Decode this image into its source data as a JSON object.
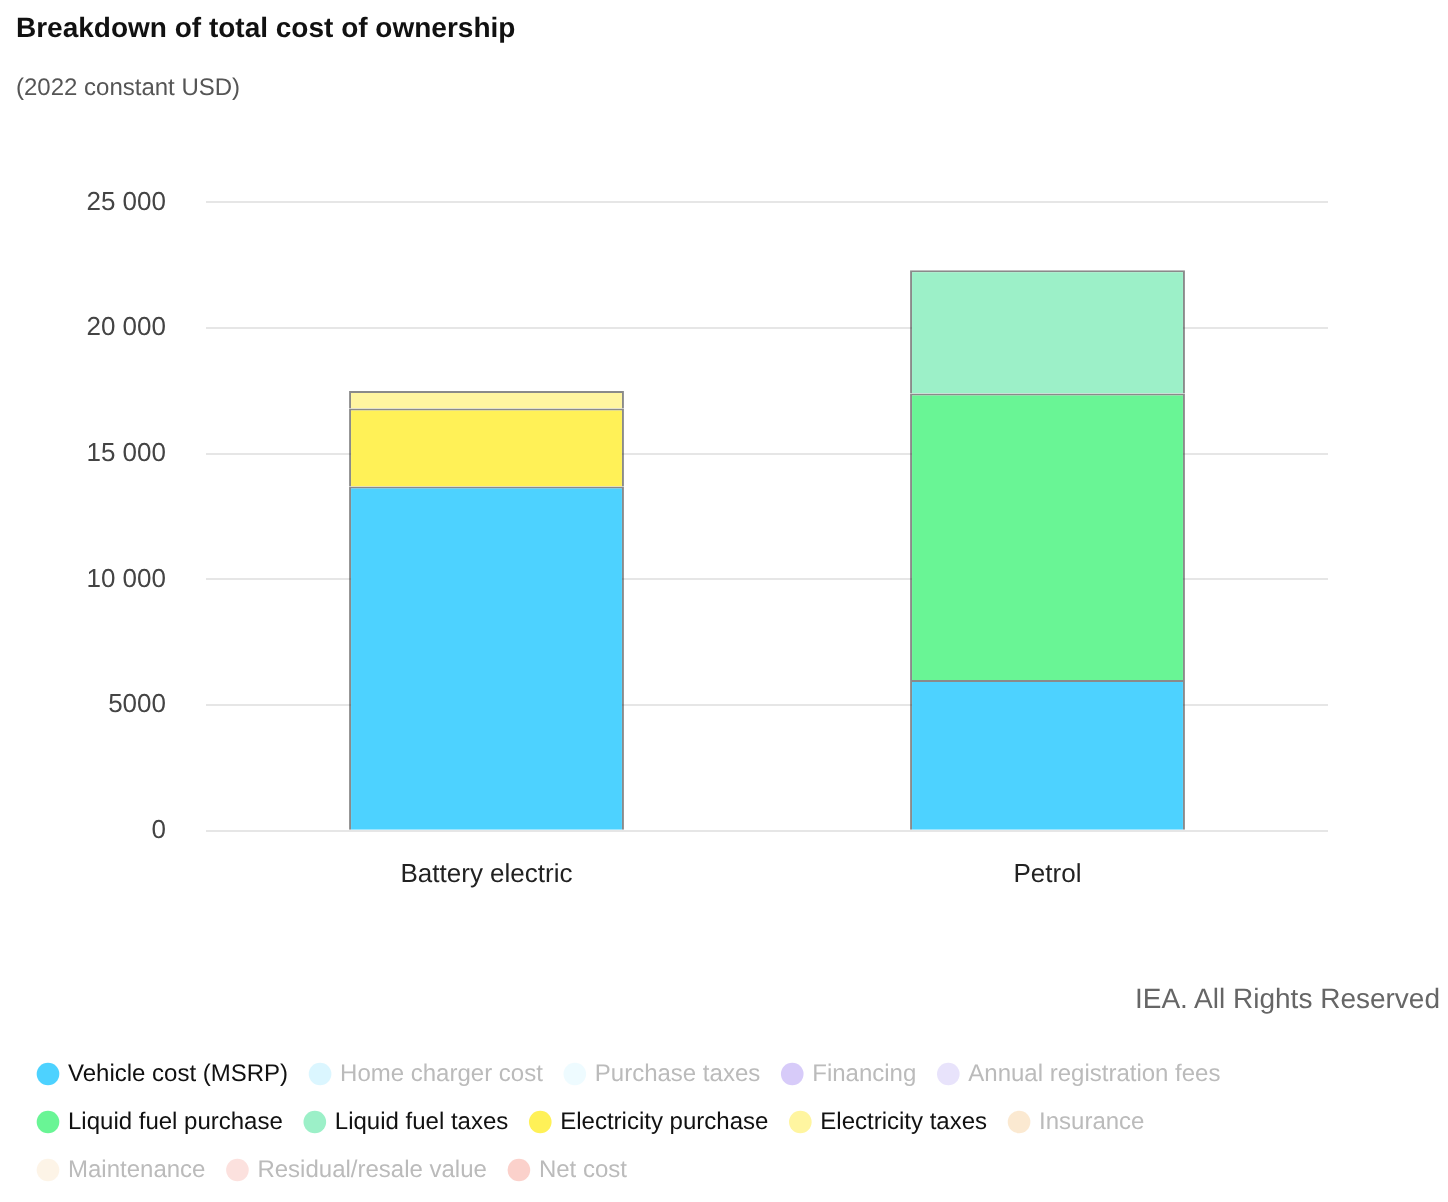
{
  "chart_data": {
    "type": "bar",
    "title": "Breakdown of total cost of ownership",
    "subtitle": "(2022 constant USD)",
    "categories": [
      "Battery electric",
      "Petrol"
    ],
    "stacked": true,
    "ylim": [
      0,
      25000
    ],
    "yticks": [
      {
        "value": 0,
        "label": "0"
      },
      {
        "value": 5000,
        "label": "5000"
      },
      {
        "value": 10000,
        "label": "10 000"
      },
      {
        "value": 15000,
        "label": "15 000"
      },
      {
        "value": 20000,
        "label": "20 000"
      },
      {
        "value": 25000,
        "label": "25 000"
      }
    ],
    "grid": "y",
    "legend": "bottom",
    "annotations": [
      "IEA. All Rights Reserved"
    ],
    "series": [
      {
        "name": "Vehicle cost (MSRP)",
        "color": "#4dd2ff",
        "values": [
          13700,
          6000
        ]
      },
      {
        "name": "Home charger cost",
        "color": "#a6e9ff",
        "values": [
          null,
          null
        ]
      },
      {
        "name": "Purchase taxes",
        "color": "#d4f4ff",
        "values": [
          null,
          null
        ]
      },
      {
        "name": "Financing",
        "color": "#9a7cf0",
        "values": [
          null,
          null
        ]
      },
      {
        "name": "Annual registration fees",
        "color": "#c6b8f5",
        "values": [
          null,
          null
        ]
      },
      {
        "name": "Liquid fuel purchase",
        "color": "#69f595",
        "values": [
          null,
          11400
        ]
      },
      {
        "name": "Liquid fuel taxes",
        "color": "#9cf0c8",
        "values": [
          null,
          4900
        ]
      },
      {
        "name": "Electricity purchase",
        "color": "#fff157",
        "values": [
          3100,
          null
        ]
      },
      {
        "name": "Electricity taxes",
        "color": "#fff5a0",
        "values": [
          700,
          null
        ]
      },
      {
        "name": "Insurance",
        "color": "#f5c98c",
        "values": [
          null,
          null
        ]
      },
      {
        "name": "Maintenance",
        "color": "#fbe3c2",
        "values": [
          null,
          null
        ]
      },
      {
        "name": "Residual/resale value",
        "color": "#f7b3ad",
        "values": [
          null,
          null
        ]
      },
      {
        "name": "Net cost",
        "color": "#f48c7e",
        "values": [
          null,
          null
        ]
      }
    ]
  }
}
